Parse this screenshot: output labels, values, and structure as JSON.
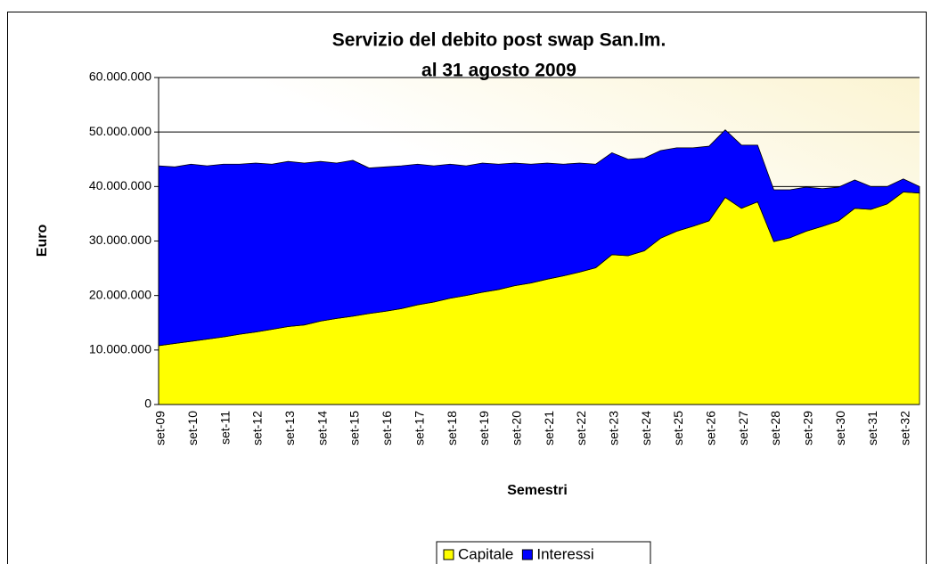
{
  "chart_data": {
    "type": "stacked_area",
    "title": [
      "Servizio del debito post swap San.Im.",
      "al 31 agosto 2009"
    ],
    "x_label": "Semestri",
    "y_label": "Euro",
    "categories": [
      "set-09",
      null,
      "set-10",
      null,
      "set-11",
      null,
      "set-12",
      null,
      "set-13",
      null,
      "set-14",
      null,
      "set-15",
      null,
      "set-16",
      null,
      "set-17",
      null,
      "set-18",
      null,
      "set-19",
      null,
      "set-20",
      null,
      "set-21",
      null,
      "set-22",
      null,
      "set-23",
      null,
      "set-24",
      null,
      "set-25",
      null,
      "set-26",
      null,
      "set-27",
      null,
      "set-28",
      null,
      "set-29",
      null,
      "set-30",
      null,
      "set-31",
      null,
      "set-32",
      null
    ],
    "series": [
      {
        "name": "Capitale",
        "color": "#ffff00",
        "values": [
          10800000,
          11200000,
          11600000,
          12000000,
          12400000,
          12900000,
          13300000,
          13800000,
          14300000,
          14600000,
          15300000,
          15800000,
          16200000,
          16700000,
          17100000,
          17600000,
          18300000,
          18800000,
          19500000,
          20000000,
          20600000,
          21100000,
          21800000,
          22300000,
          23000000,
          23600000,
          24300000,
          25100000,
          27500000,
          27300000,
          28200000,
          30500000,
          31800000,
          32700000,
          33700000,
          38000000,
          36000000,
          37200000,
          29900000,
          30600000,
          31800000,
          32700000,
          33700000,
          36000000,
          35800000,
          36800000,
          39000000,
          38800000
        ]
      },
      {
        "name": "Interessi",
        "color": "#0000ff",
        "values": [
          33000000,
          32400000,
          32500000,
          31800000,
          31700000,
          31200000,
          31000000,
          30300000,
          30300000,
          29700000,
          29300000,
          28500000,
          28600000,
          26700000,
          26500000,
          26200000,
          25800000,
          25000000,
          24600000,
          23800000,
          23700000,
          23000000,
          22500000,
          21800000,
          21300000,
          20500000,
          20000000,
          19000000,
          18700000,
          17700000,
          17000000,
          16100000,
          15300000,
          14400000,
          13700000,
          12400000,
          11600000,
          10400000,
          9500000,
          8800000,
          8100000,
          6900000,
          6200000,
          5200000,
          4200000,
          3200000,
          2400000,
          1200000
        ]
      }
    ],
    "ylim": [
      0,
      60000000
    ],
    "yticks": [
      0,
      {
        "value": 10000000,
        "label": "10.000.000"
      },
      {
        "value": 20000000,
        "label": "20.000.000"
      },
      {
        "value": 30000000,
        "label": "30.000.000"
      },
      {
        "value": 40000000,
        "label": "40.000.000"
      },
      {
        "value": 50000000,
        "label": "50.000.000"
      },
      {
        "value": 60000000,
        "label": "60.000.000"
      }
    ],
    "grid": true,
    "legend": "bottom"
  }
}
